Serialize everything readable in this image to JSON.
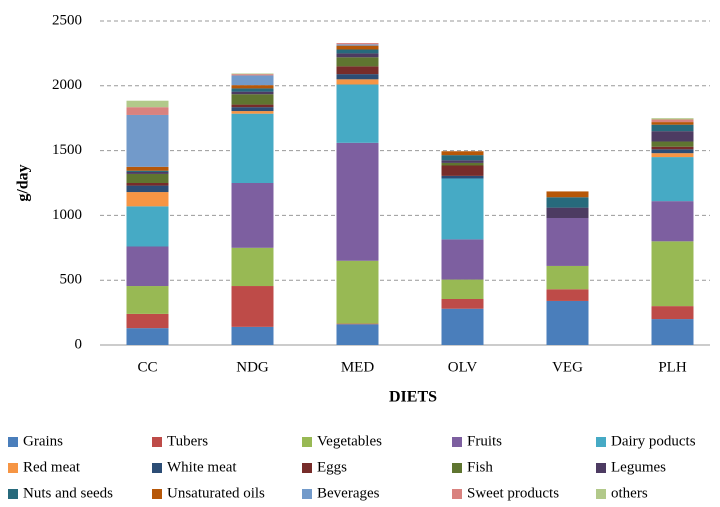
{
  "chart_data": {
    "type": "stacked_bar",
    "x_label": "DIETS",
    "y_label": "g/day",
    "categories": [
      "CC",
      "NDG",
      "MED",
      "OLV",
      "VEG",
      "PLH"
    ],
    "ylim": [
      0,
      2500
    ],
    "yticks": [
      0,
      500,
      1000,
      1500,
      2000,
      2500
    ],
    "grid": true,
    "series": [
      {
        "name": "Grains",
        "color": "#4a7ebb",
        "values": [
          130,
          140,
          160,
          280,
          340,
          200
        ]
      },
      {
        "name": "Tubers",
        "color": "#be4b48",
        "values": [
          110,
          315,
          5,
          75,
          90,
          100
        ]
      },
      {
        "name": "Vegetables",
        "color": "#98b954",
        "values": [
          215,
          295,
          485,
          150,
          180,
          500
        ]
      },
      {
        "name": "Fruits",
        "color": "#7d5fa0",
        "values": [
          305,
          500,
          910,
          310,
          370,
          310
        ]
      },
      {
        "name": "Dairy poducts",
        "color": "#46aac5",
        "values": [
          310,
          535,
          450,
          470,
          0,
          340
        ]
      },
      {
        "name": "Red meat",
        "color": "#f69544",
        "values": [
          110,
          20,
          40,
          0,
          0,
          30
        ]
      },
      {
        "name": "White meat",
        "color": "#2c4d75",
        "values": [
          50,
          30,
          40,
          20,
          0,
          30
        ]
      },
      {
        "name": "Eggs",
        "color": "#772c2a",
        "values": [
          20,
          20,
          60,
          80,
          0,
          20
        ]
      },
      {
        "name": "Fish",
        "color": "#5f7530",
        "values": [
          70,
          80,
          70,
          20,
          0,
          40
        ]
      },
      {
        "name": "Legumes",
        "color": "#4d3b62",
        "values": [
          15,
          20,
          30,
          20,
          80,
          80
        ]
      },
      {
        "name": "Nuts and seeds",
        "color": "#276a7c",
        "values": [
          10,
          25,
          30,
          40,
          80,
          50
        ]
      },
      {
        "name": "Unsaturated oils",
        "color": "#b65708",
        "values": [
          30,
          25,
          30,
          30,
          45,
          20
        ]
      },
      {
        "name": "Beverages",
        "color": "#729aca",
        "values": [
          400,
          75,
          10,
          0,
          0,
          0
        ]
      },
      {
        "name": "Sweet products",
        "color": "#d9827f",
        "values": [
          60,
          10,
          10,
          0,
          0,
          20
        ]
      },
      {
        "name": "others",
        "color": "#b2c98a",
        "values": [
          50,
          5,
          0,
          0,
          0,
          10
        ]
      }
    ]
  }
}
